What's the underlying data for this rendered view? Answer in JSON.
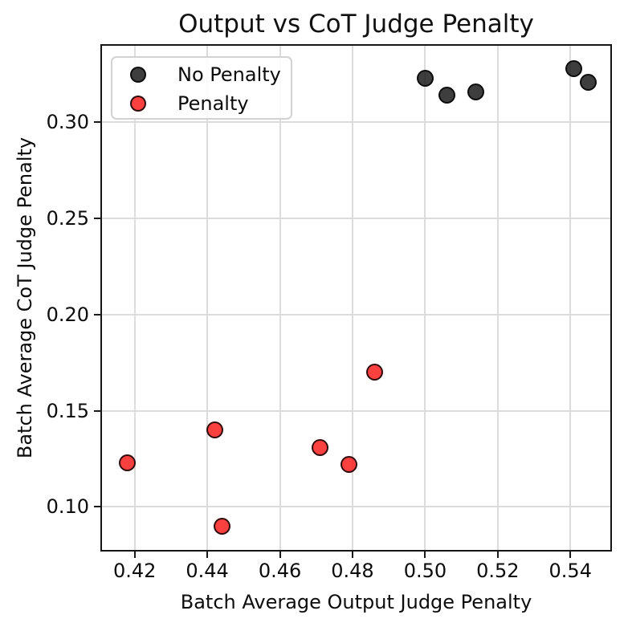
{
  "chart_data": {
    "type": "scatter",
    "title": "Output vs CoT Judge Penalty",
    "xlabel": "Batch Average Output Judge Penalty",
    "ylabel": "Batch Average CoT Judge Penalty",
    "xlim": [
      0.411,
      0.551
    ],
    "ylim": [
      0.0776,
      0.3398
    ],
    "x_ticks": {
      "values": [
        0.42,
        0.44,
        0.46,
        0.48,
        0.5,
        0.52,
        0.54
      ],
      "labels": [
        "0.42",
        "0.44",
        "0.46",
        "0.48",
        "0.50",
        "0.52",
        "0.54"
      ]
    },
    "y_ticks": {
      "values": [
        0.1,
        0.15,
        0.2,
        0.25,
        0.3
      ],
      "labels": [
        "0.10",
        "0.15",
        "0.20",
        "0.25",
        "0.30"
      ]
    },
    "grid": true,
    "legend_position": "upper left",
    "series": [
      {
        "name": "No Penalty",
        "fill": "rgba(20,20,20,0.82)",
        "edge": "rgba(0,0,0,0.8)",
        "points": [
          [
            0.5,
            0.323
          ],
          [
            0.506,
            0.314
          ],
          [
            0.514,
            0.316
          ],
          [
            0.541,
            0.328
          ],
          [
            0.545,
            0.321
          ]
        ]
      },
      {
        "name": "Penalty",
        "fill": "rgba(250,30,30,0.85)",
        "edge": "rgba(0,0,0,0.8)",
        "points": [
          [
            0.418,
            0.123
          ],
          [
            0.442,
            0.14
          ],
          [
            0.444,
            0.09
          ],
          [
            0.471,
            0.131
          ],
          [
            0.479,
            0.122
          ],
          [
            0.486,
            0.17
          ]
        ]
      }
    ]
  }
}
